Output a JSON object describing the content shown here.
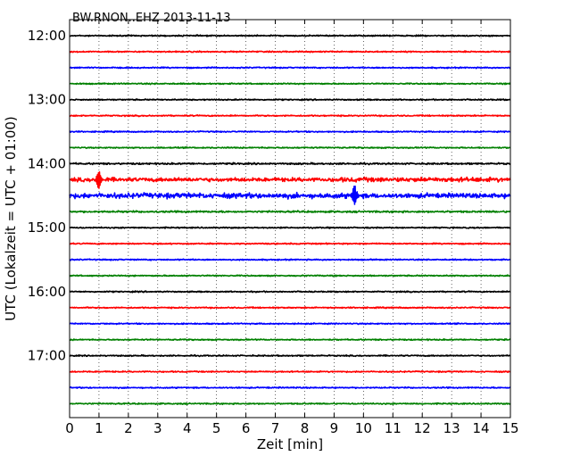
{
  "chart_data": {
    "type": "line",
    "title": "BW.RNON..EHZ 2013-11-13",
    "xlabel": "Zeit  [min]",
    "ylabel": "UTC (Lokalzeit = UTC + 01:00)",
    "xlim": [
      0,
      15
    ],
    "x_ticks": [
      "0",
      "1",
      "2",
      "3",
      "4",
      "5",
      "6",
      "7",
      "8",
      "9",
      "10",
      "11",
      "12",
      "13",
      "14",
      "15"
    ],
    "y_ticks": [
      {
        "label": "12:00",
        "trace": 0
      },
      {
        "label": "13:00",
        "trace": 4
      },
      {
        "label": "14:00",
        "trace": 8
      },
      {
        "label": "15:00",
        "trace": 12
      },
      {
        "label": "16:00",
        "trace": 16
      },
      {
        "label": "17:00",
        "trace": 20
      }
    ],
    "grid": true,
    "trace_interval_min": 15,
    "colors": [
      "#000000",
      "#ff0000",
      "#0000ff",
      "#008000"
    ],
    "traces": [
      {
        "start": "12:00",
        "amp": 1.0
      },
      {
        "start": "12:15",
        "amp": 1.0
      },
      {
        "start": "12:30",
        "amp": 1.0
      },
      {
        "start": "12:45",
        "amp": 1.0
      },
      {
        "start": "13:00",
        "amp": 1.0
      },
      {
        "start": "13:15",
        "amp": 1.0
      },
      {
        "start": "13:30",
        "amp": 1.0
      },
      {
        "start": "13:45",
        "amp": 1.0
      },
      {
        "start": "14:00",
        "amp": 1.3
      },
      {
        "start": "14:15",
        "amp": 3.0,
        "bursts": [
          [
            0.7,
            2.1,
            3.2
          ],
          [
            9.0,
            15.0,
            3.6
          ]
        ],
        "spikes": [
          [
            1.0,
            9
          ]
        ]
      },
      {
        "start": "14:30",
        "amp": 3.6,
        "bursts": [
          [
            0.0,
            9.9,
            4.0
          ]
        ],
        "spikes": [
          [
            9.7,
            11
          ]
        ]
      },
      {
        "start": "14:45",
        "amp": 1.4
      },
      {
        "start": "15:00",
        "amp": 1.0
      },
      {
        "start": "15:15",
        "amp": 1.0
      },
      {
        "start": "15:30",
        "amp": 1.0
      },
      {
        "start": "15:45",
        "amp": 1.0
      },
      {
        "start": "16:00",
        "amp": 1.0
      },
      {
        "start": "16:15",
        "amp": 1.0
      },
      {
        "start": "16:30",
        "amp": 1.0
      },
      {
        "start": "16:45",
        "amp": 1.0
      },
      {
        "start": "17:00",
        "amp": 1.0
      },
      {
        "start": "17:15",
        "amp": 1.0
      },
      {
        "start": "17:30",
        "amp": 1.0
      },
      {
        "start": "17:45",
        "amp": 1.0
      }
    ]
  }
}
